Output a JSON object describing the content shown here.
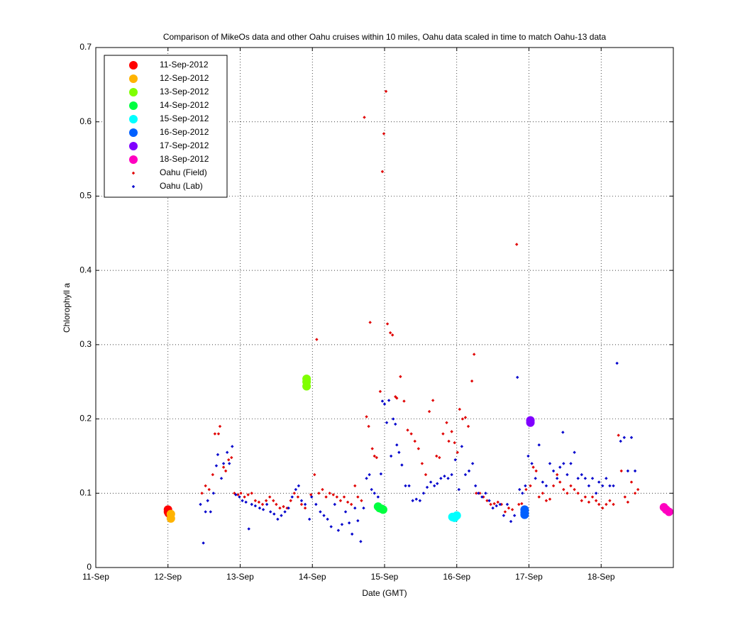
{
  "chart_data": {
    "type": "scatter",
    "title": "Comparison of MikeOs data and other Oahu cruises within 10 miles, Oahu data scaled in time to match Oahu-13 data",
    "xlabel": "Date (GMT)",
    "ylabel": "Chlorophyll a",
    "xlim": [
      0,
      8
    ],
    "xticks": [
      {
        "value": 0,
        "label": "11-Sep"
      },
      {
        "value": 1,
        "label": "12-Sep"
      },
      {
        "value": 2,
        "label": "13-Sep"
      },
      {
        "value": 3,
        "label": "14-Sep"
      },
      {
        "value": 4,
        "label": "15-Sep"
      },
      {
        "value": 5,
        "label": "16-Sep"
      },
      {
        "value": 6,
        "label": "17-Sep"
      },
      {
        "value": 7,
        "label": "18-Sep"
      }
    ],
    "ylim": [
      0,
      0.7
    ],
    "yticks": [
      0,
      0.1,
      0.2,
      0.3,
      0.4,
      0.5,
      0.6,
      0.7
    ],
    "grid": true,
    "legend": "upper left",
    "series": [
      {
        "name": "11-Sep-2012",
        "color": "#ff0000",
        "marker": "circle",
        "x": [
          1.0,
          1.0,
          1.01
        ],
        "values": [
          0.078,
          0.075,
          0.073
        ]
      },
      {
        "name": "12-Sep-2012",
        "color": "#ffb300",
        "marker": "circle",
        "x": [
          1.04,
          1.04
        ],
        "values": [
          0.072,
          0.066
        ]
      },
      {
        "name": "13-Sep-2012",
        "color": "#80ff00",
        "marker": "circle",
        "x": [
          2.92,
          2.92,
          2.92
        ],
        "values": [
          0.254,
          0.25,
          0.244
        ]
      },
      {
        "name": "14-Sep-2012",
        "color": "#00ff40",
        "marker": "circle",
        "x": [
          3.91,
          3.93,
          3.96,
          3.98
        ],
        "values": [
          0.082,
          0.08,
          0.079,
          0.078
        ]
      },
      {
        "name": "15-Sep-2012",
        "color": "#00ffff",
        "marker": "circle",
        "x": [
          4.94,
          4.97,
          5.0
        ],
        "values": [
          0.068,
          0.067,
          0.07
        ]
      },
      {
        "name": "16-Sep-2012",
        "color": "#0060ff",
        "marker": "circle",
        "x": [
          5.94,
          5.94,
          5.94
        ],
        "values": [
          0.078,
          0.074,
          0.071
        ]
      },
      {
        "name": "17-Sep-2012",
        "color": "#8000ff",
        "marker": "circle",
        "x": [
          6.02,
          6.02
        ],
        "values": [
          0.198,
          0.195
        ]
      },
      {
        "name": "18-Sep-2012",
        "color": "#ff00c0",
        "marker": "circle",
        "x": [
          7.87,
          7.9,
          7.94
        ],
        "values": [
          0.081,
          0.078,
          0.075
        ]
      },
      {
        "name": "Oahu (Field)",
        "color": "#e00000",
        "marker": "diamond",
        "x": [
          1.47,
          1.52,
          1.57,
          1.62,
          1.65,
          1.7,
          1.72,
          1.77,
          1.8,
          1.84,
          1.88,
          1.92,
          1.97,
          2.01,
          2.06,
          2.11,
          2.16,
          2.21,
          2.26,
          2.31,
          2.36,
          2.41,
          2.46,
          2.5,
          2.55,
          2.6,
          2.65,
          2.7,
          2.75,
          2.8,
          2.85,
          2.9,
          2.98,
          3.03,
          3.06,
          3.09,
          3.14,
          3.19,
          3.24,
          3.29,
          3.34,
          3.39,
          3.44,
          3.49,
          3.54,
          3.59,
          3.63,
          3.68,
          3.72,
          3.75,
          3.78,
          3.8,
          3.83,
          3.86,
          3.89,
          3.94,
          3.97,
          3.99,
          4.02,
          4.04,
          4.08,
          4.11,
          4.15,
          4.17,
          4.22,
          4.27,
          4.32,
          4.37,
          4.42,
          4.47,
          4.52,
          4.57,
          4.62,
          4.67,
          4.72,
          4.76,
          4.81,
          4.86,
          4.89,
          4.93,
          4.97,
          5.01,
          5.04,
          5.08,
          5.12,
          5.16,
          5.21,
          5.24,
          5.27,
          5.32,
          5.37,
          5.42,
          5.47,
          5.52,
          5.57,
          5.62,
          5.67,
          5.72,
          5.77,
          5.83,
          5.86,
          5.9,
          5.96,
          6.02,
          6.06,
          6.1,
          6.14,
          6.19,
          6.24,
          6.29,
          6.34,
          6.39,
          6.43,
          6.48,
          6.53,
          6.58,
          6.63,
          6.68,
          6.73,
          6.78,
          6.83,
          6.88,
          6.93,
          6.97,
          7.02,
          7.07,
          7.12,
          7.17,
          7.24,
          7.28,
          7.33,
          7.37,
          7.42,
          7.47,
          7.51
        ],
        "values": [
          0.1,
          0.11,
          0.105,
          0.125,
          0.18,
          0.18,
          0.19,
          0.135,
          0.13,
          0.145,
          0.148,
          0.1,
          0.098,
          0.1,
          0.095,
          0.098,
          0.1,
          0.09,
          0.088,
          0.085,
          0.09,
          0.095,
          0.09,
          0.085,
          0.08,
          0.082,
          0.08,
          0.09,
          0.1,
          0.095,
          0.085,
          0.08,
          0.098,
          0.125,
          0.307,
          0.1,
          0.105,
          0.095,
          0.1,
          0.098,
          0.095,
          0.09,
          0.095,
          0.088,
          0.085,
          0.11,
          0.095,
          0.09,
          0.606,
          0.203,
          0.19,
          0.33,
          0.16,
          0.15,
          0.148,
          0.237,
          0.533,
          0.584,
          0.641,
          0.328,
          0.316,
          0.313,
          0.23,
          0.228,
          0.257,
          0.224,
          0.185,
          0.18,
          0.17,
          0.16,
          0.14,
          0.125,
          0.21,
          0.225,
          0.15,
          0.148,
          0.18,
          0.195,
          0.17,
          0.183,
          0.168,
          0.155,
          0.213,
          0.2,
          0.202,
          0.19,
          0.251,
          0.287,
          0.1,
          0.1,
          0.095,
          0.09,
          0.085,
          0.086,
          0.088,
          0.085,
          0.075,
          0.08,
          0.078,
          0.435,
          0.085,
          0.086,
          0.105,
          0.11,
          0.135,
          0.13,
          0.095,
          0.1,
          0.09,
          0.092,
          0.11,
          0.125,
          0.115,
          0.105,
          0.1,
          0.11,
          0.105,
          0.1,
          0.09,
          0.095,
          0.088,
          0.095,
          0.09,
          0.085,
          0.08,
          0.085,
          0.09,
          0.085,
          0.178,
          0.13,
          0.095,
          0.088,
          0.115,
          0.1,
          0.105
        ]
      },
      {
        "name": "Oahu (Lab)",
        "color": "#0000cc",
        "marker": "diamond",
        "x": [
          1.45,
          1.49,
          1.52,
          1.55,
          1.59,
          1.63,
          1.67,
          1.69,
          1.74,
          1.77,
          1.82,
          1.85,
          1.89,
          1.94,
          1.99,
          2.03,
          2.08,
          2.12,
          2.16,
          2.21,
          2.27,
          2.32,
          2.37,
          2.42,
          2.47,
          2.52,
          2.57,
          2.62,
          2.67,
          2.72,
          2.77,
          2.81,
          2.85,
          2.9,
          2.96,
          2.99,
          3.05,
          3.11,
          3.16,
          3.21,
          3.26,
          3.31,
          3.36,
          3.41,
          3.46,
          3.51,
          3.55,
          3.59,
          3.63,
          3.67,
          3.71,
          3.75,
          3.79,
          3.82,
          3.86,
          3.91,
          3.95,
          3.97,
          4.0,
          4.03,
          4.06,
          4.09,
          4.12,
          4.15,
          4.17,
          4.2,
          4.24,
          4.29,
          4.34,
          4.39,
          4.44,
          4.49,
          4.54,
          4.59,
          4.64,
          4.69,
          4.73,
          4.78,
          4.83,
          4.88,
          4.93,
          4.98,
          5.03,
          5.07,
          5.12,
          5.17,
          5.22,
          5.26,
          5.3,
          5.35,
          5.4,
          5.45,
          5.5,
          5.55,
          5.6,
          5.65,
          5.7,
          5.75,
          5.8,
          5.84,
          5.87,
          5.91,
          5.95,
          5.99,
          6.04,
          6.09,
          6.14,
          6.19,
          6.24,
          6.29,
          6.34,
          6.39,
          6.43,
          6.48,
          6.53,
          6.58,
          6.63,
          6.68,
          6.73,
          6.78,
          6.83,
          6.88,
          6.93,
          6.97,
          7.02,
          7.07,
          7.12,
          7.17,
          7.22,
          7.27,
          7.32,
          7.37,
          7.42,
          7.47,
          6.47
        ],
        "values": [
          0.085,
          0.033,
          0.075,
          0.09,
          0.075,
          0.1,
          0.137,
          0.152,
          0.12,
          0.14,
          0.155,
          0.14,
          0.163,
          0.098,
          0.095,
          0.09,
          0.088,
          0.052,
          0.085,
          0.083,
          0.08,
          0.078,
          0.085,
          0.075,
          0.072,
          0.065,
          0.07,
          0.075,
          0.08,
          0.095,
          0.105,
          0.11,
          0.09,
          0.085,
          0.065,
          0.095,
          0.085,
          0.075,
          0.07,
          0.065,
          0.055,
          0.085,
          0.05,
          0.058,
          0.075,
          0.06,
          0.045,
          0.08,
          0.063,
          0.035,
          0.08,
          0.12,
          0.125,
          0.105,
          0.1,
          0.095,
          0.126,
          0.224,
          0.22,
          0.195,
          0.225,
          0.15,
          0.2,
          0.193,
          0.165,
          0.155,
          0.138,
          0.11,
          0.11,
          0.09,
          0.092,
          0.09,
          0.1,
          0.108,
          0.115,
          0.11,
          0.113,
          0.12,
          0.123,
          0.12,
          0.125,
          0.145,
          0.105,
          0.163,
          0.125,
          0.13,
          0.14,
          0.11,
          0.1,
          0.095,
          0.1,
          0.09,
          0.08,
          0.083,
          0.085,
          0.07,
          0.085,
          0.062,
          0.07,
          0.256,
          0.105,
          0.1,
          0.11,
          0.15,
          0.14,
          0.12,
          0.165,
          0.115,
          0.11,
          0.14,
          0.13,
          0.12,
          0.135,
          0.14,
          0.125,
          0.14,
          0.155,
          0.12,
          0.125,
          0.12,
          0.11,
          0.12,
          0.1,
          0.115,
          0.11,
          0.12,
          0.11,
          0.11,
          0.275,
          0.17,
          0.175,
          0.13,
          0.175,
          0.13,
          0.182
        ]
      }
    ]
  }
}
